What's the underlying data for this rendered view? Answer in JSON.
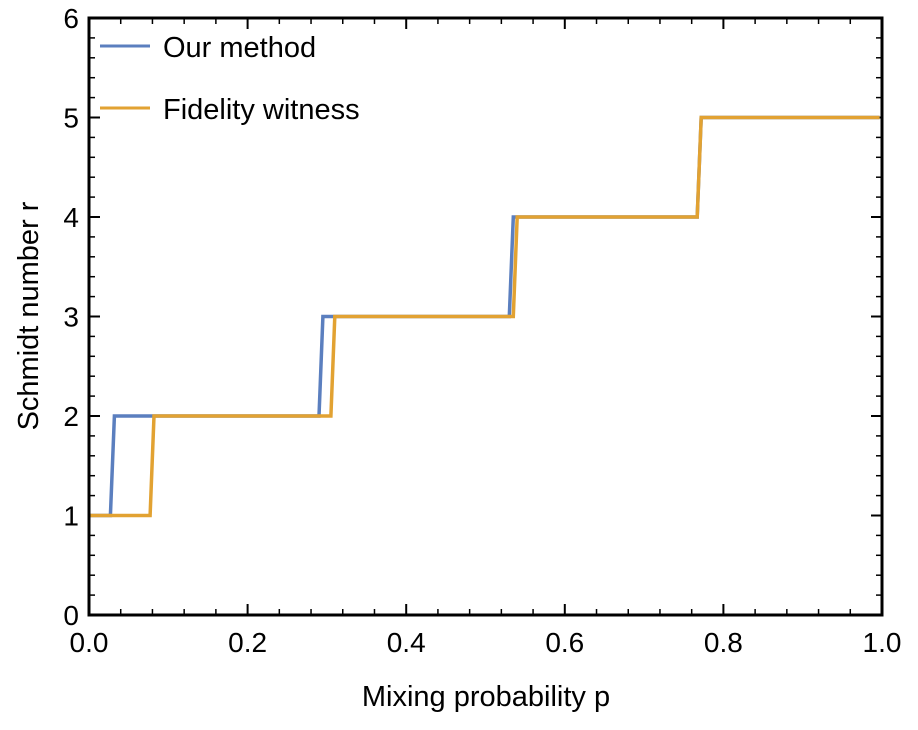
{
  "chart_data": {
    "type": "line",
    "title": "",
    "xlabel": "Mixing probability p",
    "ylabel": "Schmidt number r",
    "xlim": [
      0.0,
      1.0
    ],
    "ylim": [
      0,
      6
    ],
    "x_ticks": [
      "0.0",
      "0.2",
      "0.4",
      "0.6",
      "0.8",
      "1.0"
    ],
    "x_tick_values": [
      0.0,
      0.2,
      0.4,
      0.6,
      0.8,
      1.0
    ],
    "y_ticks": [
      "0",
      "1",
      "2",
      "3",
      "4",
      "5",
      "6"
    ],
    "y_tick_values": [
      0,
      1,
      2,
      3,
      4,
      5,
      6
    ],
    "grid": false,
    "legend_position": "top-left",
    "series": [
      {
        "name": "Our method",
        "color": "#5b7fbf",
        "x": [
          0.0,
          0.027,
          0.032,
          0.29,
          0.295,
          0.53,
          0.535,
          0.767,
          0.772,
          0.997
        ],
        "y": [
          1,
          1,
          2,
          2,
          3,
          3,
          4,
          4,
          5,
          5
        ]
      },
      {
        "name": "Fidelity witness",
        "color": "#e2a232",
        "x": [
          0.0,
          0.077,
          0.082,
          0.305,
          0.31,
          0.535,
          0.54,
          0.767,
          0.772,
          0.997
        ],
        "y": [
          1,
          1,
          2,
          2,
          3,
          3,
          4,
          4,
          5,
          5
        ]
      }
    ]
  }
}
